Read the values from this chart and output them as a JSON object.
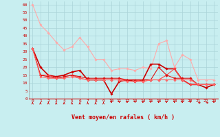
{
  "x": [
    0,
    1,
    2,
    3,
    4,
    5,
    6,
    7,
    8,
    9,
    10,
    11,
    12,
    13,
    14,
    15,
    16,
    17,
    18,
    19,
    20,
    21,
    22,
    23
  ],
  "series": [
    {
      "y": [
        60,
        47,
        42,
        36,
        31,
        33,
        39,
        33,
        25,
        25,
        18,
        19,
        19,
        18,
        20,
        19,
        35,
        37,
        20,
        28,
        25,
        12,
        12,
        12
      ],
      "color": "#ffaaaa",
      "lw": 0.8,
      "marker": "D",
      "ms": 1.8
    },
    {
      "y": [
        32,
        20,
        15,
        14,
        15,
        17,
        18,
        12,
        12,
        12,
        3,
        11,
        12,
        11,
        12,
        22,
        22,
        19,
        19,
        12,
        9,
        9,
        7,
        9
      ],
      "color": "#cc0000",
      "lw": 1.2,
      "marker": "D",
      "ms": 1.8
    },
    {
      "y": [
        32,
        15,
        15,
        13,
        14,
        15,
        13,
        12,
        12,
        12,
        12,
        12,
        12,
        12,
        11,
        12,
        12,
        15,
        19,
        12,
        9,
        9,
        9,
        9
      ],
      "color": "#ff4444",
      "lw": 0.8,
      "marker": "D",
      "ms": 1.8
    },
    {
      "y": [
        32,
        15,
        14,
        13,
        14,
        15,
        14,
        13,
        13,
        13,
        13,
        13,
        12,
        12,
        12,
        12,
        20,
        15,
        13,
        13,
        13,
        9,
        9,
        9
      ],
      "color": "#dd1111",
      "lw": 0.8,
      "marker": "D",
      "ms": 1.8
    },
    {
      "y": [
        32,
        14,
        13,
        13,
        13,
        14,
        13,
        12,
        12,
        12,
        12,
        12,
        11,
        11,
        11,
        12,
        12,
        12,
        12,
        12,
        12,
        9,
        9,
        9
      ],
      "color": "#ff6666",
      "lw": 0.8,
      "marker": "D",
      "ms": 1.8
    }
  ],
  "ylim": [
    0,
    62
  ],
  "yticks": [
    0,
    5,
    10,
    15,
    20,
    25,
    30,
    35,
    40,
    45,
    50,
    55,
    60
  ],
  "xlabel": "Vent moyen/en rafales ( km/h )",
  "bg_color": "#c8eef0",
  "grid_color": "#aad4d8",
  "text_color": "#cc0000",
  "tick_color": "#cc0000",
  "arrow_angles": [
    90,
    90,
    90,
    90,
    90,
    90,
    90,
    90,
    90,
    90,
    270,
    270,
    270,
    270,
    270,
    270,
    270,
    270,
    270,
    270,
    270,
    135,
    135,
    270
  ]
}
